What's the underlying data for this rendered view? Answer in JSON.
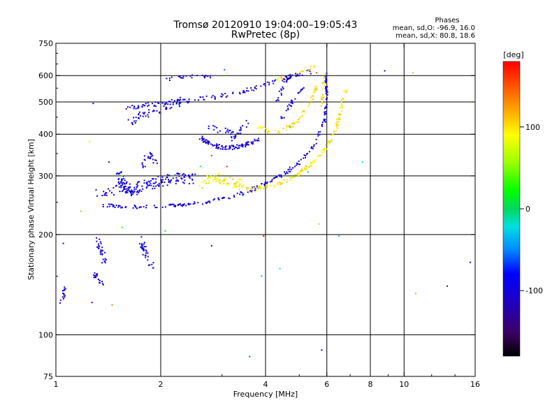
{
  "chart_data": {
    "type": "scatter",
    "title": "Tromsø 20120910 19:04:00–19:05:43",
    "subtitle": "RwPretec (8p)",
    "stats": {
      "heading": "Phases",
      "line1": "mean, sd,O: -96.9, 16.0",
      "line2": "mean, sd,X:  80.8, 18.6"
    },
    "xlabel": "Frequency [MHz]",
    "ylabel": "Stationary phase Virtual Height [km]",
    "x_scale": "log",
    "y_scale": "log",
    "xlim": [
      1,
      16
    ],
    "ylim": [
      75,
      750
    ],
    "grid": true,
    "x_grid": [
      2,
      4,
      6,
      8,
      10
    ],
    "y_grid": [
      100,
      200,
      300,
      400,
      500,
      600
    ],
    "x_ticks": [
      {
        "value": 1,
        "label": "1"
      },
      {
        "value": 2,
        "label": "2"
      },
      {
        "value": 4,
        "label": "4"
      },
      {
        "value": 6,
        "label": "6"
      },
      {
        "value": 8,
        "label": "8"
      },
      {
        "value": 10,
        "label": "10"
      },
      {
        "value": 16,
        "label": "16"
      }
    ],
    "y_ticks": [
      {
        "value": 75,
        "label": "75"
      },
      {
        "value": 100,
        "label": "100"
      },
      {
        "value": 200,
        "label": "200"
      },
      {
        "value": 300,
        "label": "300"
      },
      {
        "value": 400,
        "label": "400"
      },
      {
        "value": 500,
        "label": "500"
      },
      {
        "value": 600,
        "label": "600"
      },
      {
        "value": 750,
        "label": "750"
      }
    ],
    "colorbar": {
      "label": "[deg]",
      "range": [
        -180,
        180
      ],
      "ticks": [
        {
          "value": 100,
          "label": "100"
        },
        {
          "value": 0,
          "label": "0"
        },
        {
          "value": -100,
          "label": "-100"
        }
      ]
    },
    "traces": [
      {
        "points": [
          [
            1.6,
            478
          ],
          [
            1.8,
            488
          ],
          [
            2.0,
            495
          ],
          [
            2.4,
            505
          ],
          [
            2.8,
            515
          ],
          [
            3.2,
            528
          ],
          [
            3.6,
            545
          ],
          [
            4.0,
            562
          ],
          [
            4.5,
            585
          ],
          [
            5.0,
            605
          ],
          [
            5.4,
            618
          ]
        ],
        "phase": -100,
        "spread": 0.03,
        "n": 130
      },
      {
        "points": [
          [
            1.6,
            430
          ],
          [
            1.75,
            455
          ],
          [
            1.9,
            470
          ],
          [
            2.1,
            490
          ],
          [
            2.3,
            505
          ]
        ],
        "phase": -100,
        "spread": 0.06,
        "n": 60
      },
      {
        "points": [
          [
            2.0,
            575
          ],
          [
            2.2,
            590
          ],
          [
            2.5,
            605
          ],
          [
            2.8,
            600
          ]
        ],
        "phase": -105,
        "spread": 0.04,
        "n": 25
      },
      {
        "points": [
          [
            1.35,
            245
          ],
          [
            1.5,
            243
          ],
          [
            1.8,
            242
          ],
          [
            2.0,
            243
          ],
          [
            2.4,
            246
          ],
          [
            2.8,
            252
          ],
          [
            3.2,
            260
          ],
          [
            3.6,
            270
          ],
          [
            4.0,
            285
          ],
          [
            4.4,
            300
          ],
          [
            4.8,
            318
          ],
          [
            5.2,
            342
          ],
          [
            5.6,
            380
          ],
          [
            5.9,
            440
          ],
          [
            6.0,
            520
          ],
          [
            5.95,
            620
          ]
        ],
        "phase": -100,
        "spread": 0.025,
        "n": 220
      },
      {
        "points": [
          [
            1.5,
            300
          ],
          [
            1.6,
            270
          ],
          [
            1.8,
            280
          ],
          [
            2.0,
            290
          ],
          [
            2.2,
            295
          ],
          [
            2.5,
            295
          ]
        ],
        "phase": -100,
        "spread": 0.08,
        "n": 170
      },
      {
        "points": [
          [
            1.3,
            265
          ],
          [
            1.45,
            270
          ],
          [
            1.6,
            285
          ]
        ],
        "phase": -105,
        "spread": 0.05,
        "n": 25
      },
      {
        "points": [
          [
            1.75,
            320
          ],
          [
            1.85,
            345
          ],
          [
            1.95,
            330
          ]
        ],
        "phase": -100,
        "spread": 0.05,
        "n": 25
      },
      {
        "points": [
          [
            2.6,
            390
          ],
          [
            2.8,
            372
          ],
          [
            3.0,
            365
          ],
          [
            3.3,
            365
          ],
          [
            3.6,
            375
          ],
          [
            3.8,
            385
          ]
        ],
        "phase": -110,
        "spread": 0.03,
        "n": 110
      },
      {
        "points": [
          [
            2.7,
            420
          ],
          [
            3.0,
            410
          ],
          [
            3.3,
            405
          ]
        ],
        "phase": -100,
        "spread": 0.04,
        "n": 20
      },
      {
        "points": [
          [
            3.2,
            385
          ],
          [
            3.4,
            410
          ],
          [
            3.6,
            440
          ]
        ],
        "phase": -100,
        "spread": 0.04,
        "n": 18
      },
      {
        "points": [
          [
            2.7,
            300
          ],
          [
            3.0,
            285
          ],
          [
            3.4,
            275
          ],
          [
            3.8,
            275
          ],
          [
            4.2,
            280
          ],
          [
            4.6,
            290
          ],
          [
            5.0,
            305
          ],
          [
            5.4,
            325
          ],
          [
            5.8,
            350
          ],
          [
            6.1,
            380
          ],
          [
            6.4,
            420
          ],
          [
            6.6,
            480
          ],
          [
            6.8,
            540
          ]
        ],
        "phase": 95,
        "spread": 0.03,
        "n": 180
      },
      {
        "points": [
          [
            2.6,
            280
          ],
          [
            2.9,
            300
          ],
          [
            3.2,
            290
          ],
          [
            3.5,
            285
          ]
        ],
        "phase": 95,
        "spread": 0.05,
        "n": 40
      },
      {
        "points": [
          [
            3.8,
            420
          ],
          [
            4.2,
            405
          ],
          [
            4.6,
            415
          ],
          [
            5.0,
            445
          ],
          [
            5.4,
            500
          ],
          [
            5.6,
            560
          ]
        ],
        "phase": 100,
        "spread": 0.03,
        "n": 60
      },
      {
        "points": [
          [
            4.3,
            580
          ],
          [
            4.8,
            600
          ],
          [
            5.2,
            625
          ],
          [
            5.6,
            640
          ]
        ],
        "phase": 100,
        "spread": 0.03,
        "n": 20
      },
      {
        "points": [
          [
            4.3,
            500
          ],
          [
            4.5,
            560
          ],
          [
            4.7,
            600
          ]
        ],
        "phase": -110,
        "spread": 0.03,
        "n": 20
      },
      {
        "points": [
          [
            4.4,
            440
          ],
          [
            4.6,
            470
          ],
          [
            4.9,
            520
          ],
          [
            5.2,
            560
          ]
        ],
        "phase": -100,
        "spread": 0.03,
        "n": 25
      },
      {
        "points": [
          [
            5.8,
            480
          ],
          [
            5.85,
            540
          ],
          [
            5.9,
            600
          ]
        ],
        "phase": 100,
        "spread": 0.03,
        "n": 20
      },
      {
        "points": [
          [
            1.3,
            195
          ],
          [
            1.35,
            180
          ],
          [
            1.38,
            165
          ],
          [
            1.42,
            170
          ]
        ],
        "phase": -100,
        "spread": 0.05,
        "n": 30
      },
      {
        "points": [
          [
            1.28,
            155
          ],
          [
            1.32,
            145
          ],
          [
            1.36,
            142
          ]
        ],
        "phase": -100,
        "spread": 0.04,
        "n": 20
      },
      {
        "points": [
          [
            1.75,
            195
          ],
          [
            1.8,
            175
          ],
          [
            1.85,
            165
          ],
          [
            1.9,
            162
          ]
        ],
        "phase": -100,
        "spread": 0.05,
        "n": 35
      },
      {
        "points": [
          [
            1.02,
            125
          ],
          [
            1.05,
            130
          ],
          [
            1.06,
            138
          ]
        ],
        "phase": -100,
        "spread": 0.03,
        "n": 15
      }
    ],
    "points": [
      {
        "x": 1.05,
        "y": 188,
        "phase": -100
      },
      {
        "x": 1.28,
        "y": 495,
        "phase": -110
      },
      {
        "x": 1.42,
        "y": 330,
        "phase": -100
      },
      {
        "x": 1.25,
        "y": 380,
        "phase": 100
      },
      {
        "x": 1.27,
        "y": 125,
        "phase": -80
      },
      {
        "x": 1.45,
        "y": 123,
        "phase": 140
      },
      {
        "x": 1.18,
        "y": 235,
        "phase": 40
      },
      {
        "x": 2.06,
        "y": 205,
        "phase": 20
      },
      {
        "x": 1.55,
        "y": 210,
        "phase": 30
      },
      {
        "x": 2.2,
        "y": 300,
        "phase": 50
      },
      {
        "x": 2.6,
        "y": 320,
        "phase": 10
      },
      {
        "x": 2.8,
        "y": 345,
        "phase": 160
      },
      {
        "x": 3.1,
        "y": 320,
        "phase": 170
      },
      {
        "x": 3.1,
        "y": 610,
        "phase": 80
      },
      {
        "x": 3.05,
        "y": 625,
        "phase": -60
      },
      {
        "x": 2.8,
        "y": 185,
        "phase": -100
      },
      {
        "x": 3.95,
        "y": 198,
        "phase": 180
      },
      {
        "x": 3.9,
        "y": 150,
        "phase": -40
      },
      {
        "x": 4.4,
        "y": 158,
        "phase": -20
      },
      {
        "x": 4.7,
        "y": 420,
        "phase": 20
      },
      {
        "x": 5.3,
        "y": 308,
        "phase": -30
      },
      {
        "x": 5.6,
        "y": 612,
        "phase": 150
      },
      {
        "x": 5.7,
        "y": 215,
        "phase": 110
      },
      {
        "x": 5.8,
        "y": 90,
        "phase": -120
      },
      {
        "x": 6.5,
        "y": 198,
        "phase": -40
      },
      {
        "x": 3.6,
        "y": 86,
        "phase": -60
      },
      {
        "x": 7.6,
        "y": 330,
        "phase": -20
      },
      {
        "x": 8.8,
        "y": 620,
        "phase": -110
      },
      {
        "x": 10.6,
        "y": 612,
        "phase": 110
      },
      {
        "x": 10.8,
        "y": 133,
        "phase": 120
      },
      {
        "x": 13.3,
        "y": 140,
        "phase": -120
      },
      {
        "x": 15.5,
        "y": 165,
        "phase": -100
      },
      {
        "x": 15.7,
        "y": 500,
        "phase": 100
      },
      {
        "x": 1.55,
        "y": 300,
        "phase": 30
      }
    ]
  }
}
